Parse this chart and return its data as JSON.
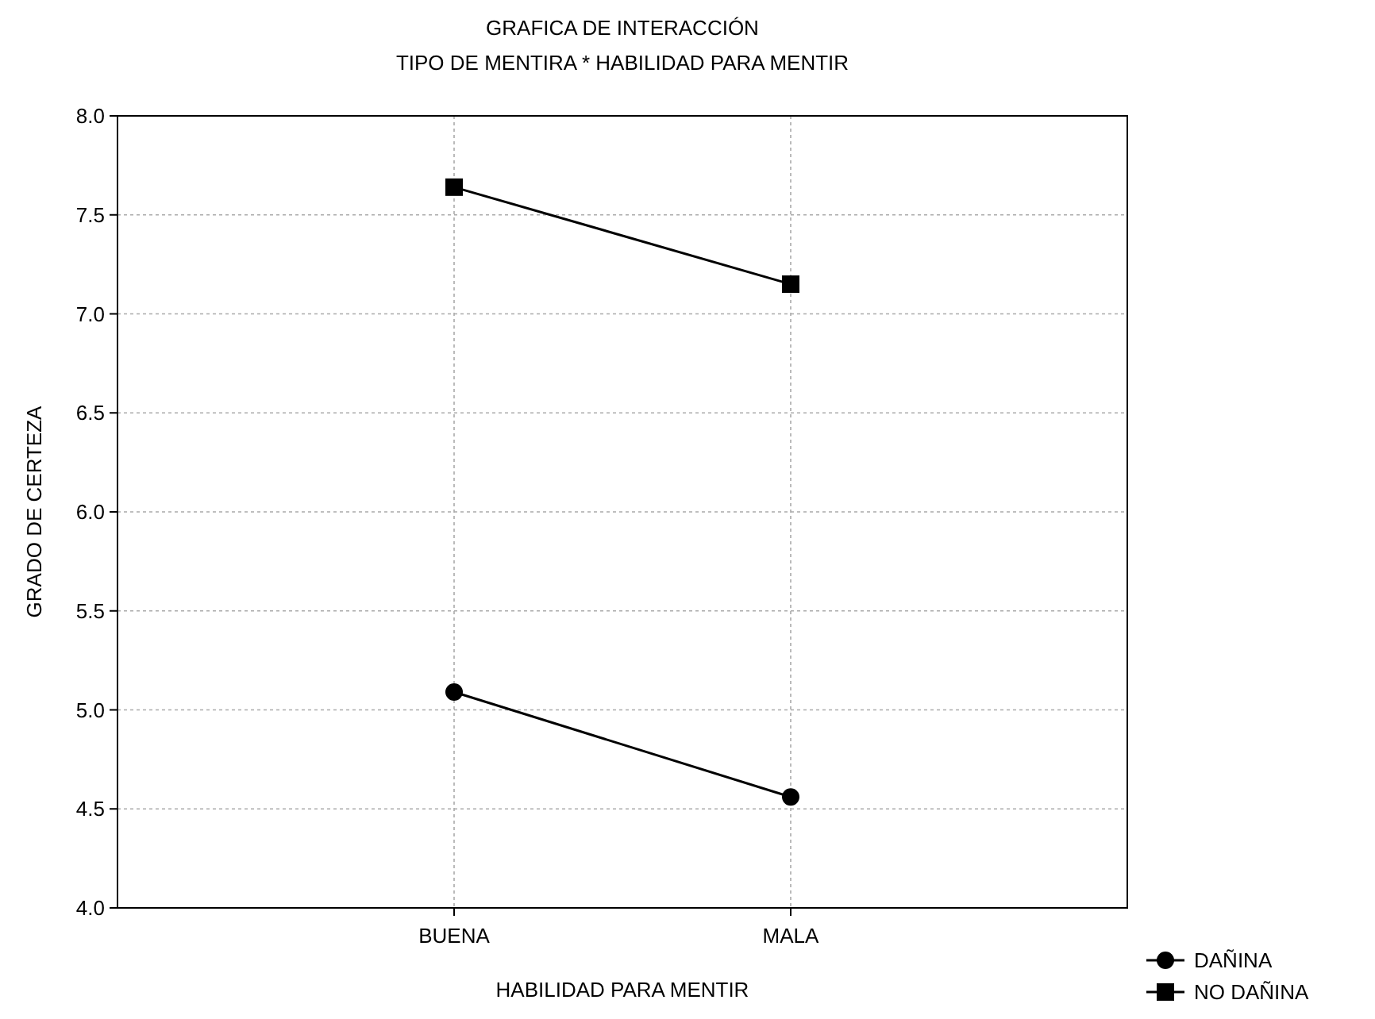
{
  "chart_data": {
    "type": "line",
    "title": "GRAFICA DE INTERACCIÓN",
    "subtitle": "TIPO DE MENTIRA * HABILIDAD PARA MENTIR",
    "xlabel": "HABILIDAD PARA MENTIR",
    "ylabel": "GRADO DE CERTEZA",
    "categories": [
      "BUENA",
      "MALA"
    ],
    "ylim": [
      4,
      8
    ],
    "yticks": [
      {
        "value": 4,
        "label": "4.0"
      },
      {
        "value": 4.5,
        "label": "4.5"
      },
      {
        "value": 5,
        "label": "5.0"
      },
      {
        "value": 5.5,
        "label": "5.5"
      },
      {
        "value": 6,
        "label": "6.0"
      },
      {
        "value": 6.5,
        "label": "6.5"
      },
      {
        "value": 7,
        "label": "7.0"
      },
      {
        "value": 7.5,
        "label": "7.5"
      },
      {
        "value": 8,
        "label": "8.0"
      }
    ],
    "grid": true,
    "legend": "bottom right",
    "line_style": "solid",
    "series": [
      {
        "name": "DAÑINA",
        "color": "#000000",
        "marker": "circle",
        "values": [
          5.09,
          4.56
        ]
      },
      {
        "name": "NO DAÑINA",
        "color": "#000000",
        "marker": "square",
        "values": [
          7.64,
          7.15
        ]
      }
    ]
  }
}
